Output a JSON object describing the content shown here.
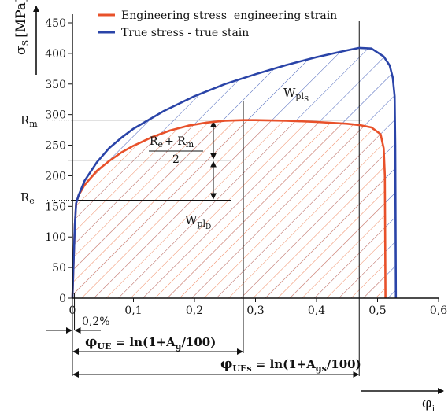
{
  "chart_data": {
    "type": "line",
    "title": "",
    "ylabel": "σ",
    "ylabel_sub": "S",
    "ylabel_unit": "[MPa]",
    "xlabel": "φ",
    "xlabel_sub": "i",
    "xlim": [
      0,
      0.6
    ],
    "ylim": [
      0,
      450
    ],
    "x_ticks": [
      {
        "value": 0,
        "label": "0"
      },
      {
        "value": 0.1,
        "label": "0,1"
      },
      {
        "value": 0.2,
        "label": "0,2"
      },
      {
        "value": 0.3,
        "label": "0,3"
      },
      {
        "value": 0.4,
        "label": "0,4"
      },
      {
        "value": 0.5,
        "label": "0,5"
      },
      {
        "value": 0.6,
        "label": "0,6"
      }
    ],
    "y_ticks": [
      {
        "value": 0,
        "label": "0"
      },
      {
        "value": 50,
        "label": "50"
      },
      {
        "value": 100,
        "label": "100"
      },
      {
        "value": 150,
        "label": "150"
      },
      {
        "value": 200,
        "label": "200"
      },
      {
        "value": 250,
        "label": "250"
      },
      {
        "value": 300,
        "label": "300"
      },
      {
        "value": 350,
        "label": "350"
      },
      {
        "value": 400,
        "label": "400"
      },
      {
        "value": 450,
        "label": "450"
      }
    ],
    "legend_position": "top",
    "series": [
      {
        "name": "Engineering stress  engineering strain",
        "color": "#e8512a",
        "x": [
          0,
          0.002,
          0.004,
          0.006,
          0.01,
          0.02,
          0.04,
          0.06,
          0.08,
          0.1,
          0.13,
          0.16,
          0.19,
          0.22,
          0.25,
          0.28,
          0.3,
          0.35,
          0.4,
          0.45,
          0.47,
          0.49,
          0.505,
          0.51,
          0.512,
          0.513
        ],
        "y": [
          0,
          60,
          120,
          155,
          168,
          185,
          208,
          224,
          238,
          249,
          263,
          274,
          282,
          287,
          290,
          291,
          291,
          290,
          288,
          285,
          283,
          279,
          268,
          245,
          200,
          0
        ]
      },
      {
        "name": "True stress - true stain",
        "color": "#2a44a8",
        "x": [
          0,
          0.002,
          0.004,
          0.006,
          0.01,
          0.02,
          0.04,
          0.06,
          0.08,
          0.1,
          0.15,
          0.2,
          0.25,
          0.3,
          0.35,
          0.4,
          0.45,
          0.47,
          0.49,
          0.51,
          0.52,
          0.525,
          0.528,
          0.529,
          0.53
        ],
        "y": [
          0,
          60,
          120,
          155,
          168,
          192,
          222,
          245,
          262,
          277,
          306,
          330,
          350,
          366,
          381,
          394,
          405,
          409,
          408,
          395,
          380,
          360,
          330,
          250,
          0
        ]
      }
    ],
    "reference_lines": {
      "Rm": {
        "label": "R",
        "label_sub": "m",
        "value": 291
      },
      "Re": {
        "label": "R",
        "label_sub": "e",
        "value": 160
      },
      "mid_value": 225.5,
      "phi_UE": 0.28,
      "phi_UEs": 0.47,
      "offset_02": 0.002
    },
    "annotations": {
      "mean_num_R1": "R",
      "mean_num_sub1": "e",
      "mean_plus": "+ R",
      "mean_num_sub2": "m",
      "mean_den": "2",
      "wpls": "W",
      "wpls_sub": "pl",
      "wpls_subsub": "S",
      "wpld": "W",
      "wpld_sub": "pl",
      "wpld_subsub": "D",
      "offset_label": "0,2%",
      "phi_ue_lhs": "φ",
      "phi_ue_lhs_sub": "UE",
      "phi_ue_rhs1": " = ln(1+A",
      "phi_ue_rhs_sub": "g",
      "phi_ue_rhs2": "/100)",
      "phi_ues_lhs": "φ",
      "phi_ues_lhs_sub": "UEs",
      "phi_ues_rhs1": " = ln(1+A",
      "phi_ues_rhs_sub": "gs",
      "phi_ues_rhs2": "/100)"
    }
  }
}
